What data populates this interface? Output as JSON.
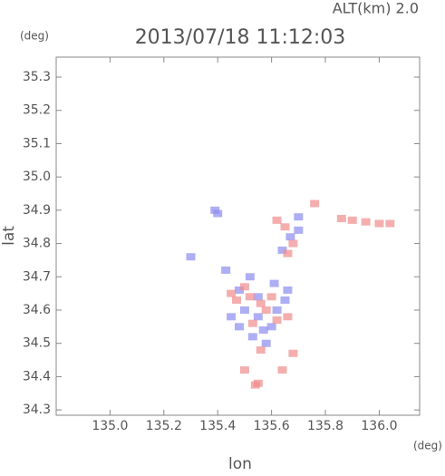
{
  "chart_data": {
    "type": "scatter",
    "title": "2013/07/18 11:12:03",
    "subtitle": "ALT(km) 2.0",
    "x_unit": "(deg)",
    "y_unit": "(deg)",
    "x_label": "lon",
    "y_label": "lat",
    "xlim": [
      134.8,
      136.15
    ],
    "ylim": [
      34.284,
      35.36
    ],
    "xticks": [
      {
        "value": 135.0,
        "label": "135.0"
      },
      135.2,
      135.4,
      135.6,
      135.8,
      {
        "value": 136.0,
        "label": "136.0"
      }
    ],
    "yticks": [
      34.3,
      34.4,
      34.5,
      34.6,
      34.7,
      34.8,
      34.9,
      {
        "value": 35.0,
        "label": "35.0"
      },
      35.1,
      35.2,
      35.3
    ],
    "series": [
      {
        "color": "#8c8cf0",
        "x": [
          135.39,
          135.4,
          135.7,
          135.7,
          135.64,
          135.67,
          135.52,
          135.48,
          135.5,
          135.55,
          135.6,
          135.57,
          135.62,
          135.65,
          135.53,
          135.58,
          135.45,
          135.48,
          135.61,
          135.66,
          135.55,
          135.43,
          135.3
        ],
        "values": [
          34.9,
          34.89,
          34.88,
          34.84,
          34.78,
          34.82,
          34.7,
          34.66,
          34.6,
          34.58,
          34.55,
          34.54,
          34.6,
          34.63,
          34.52,
          34.5,
          34.58,
          34.55,
          34.68,
          34.66,
          34.64,
          34.72,
          34.76
        ]
      },
      {
        "color": "#f08c8c",
        "x": [
          135.9,
          135.95,
          136.0,
          136.04,
          135.86,
          135.76,
          135.62,
          135.65,
          135.66,
          135.68,
          135.52,
          135.56,
          135.6,
          135.5,
          135.47,
          135.53,
          135.62,
          135.56,
          135.66,
          135.68,
          135.5,
          135.55,
          135.54,
          135.64,
          135.58,
          135.45
        ],
        "values": [
          34.87,
          34.865,
          34.86,
          34.86,
          34.875,
          34.92,
          34.87,
          34.85,
          34.77,
          34.8,
          34.64,
          34.62,
          34.64,
          34.67,
          34.63,
          34.56,
          34.57,
          34.48,
          34.58,
          34.47,
          34.42,
          34.38,
          34.375,
          34.42,
          34.6,
          34.65
        ]
      }
    ]
  }
}
